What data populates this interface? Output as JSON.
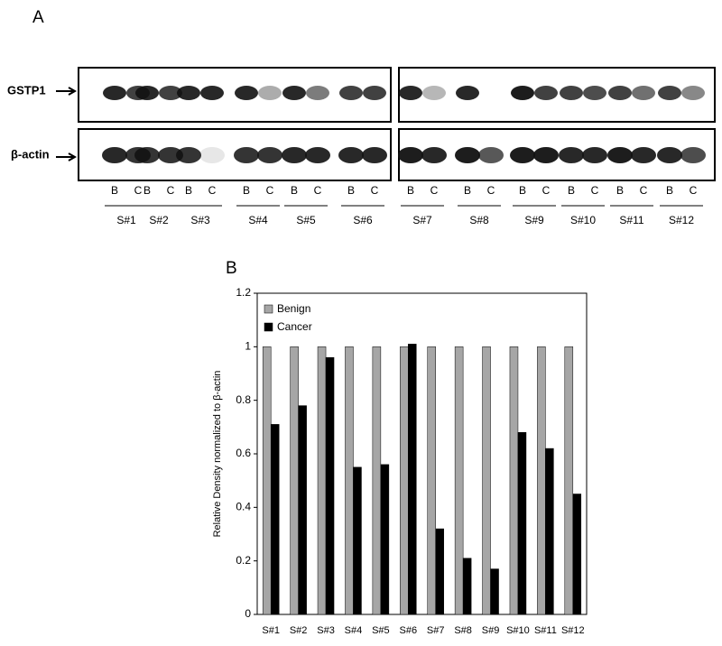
{
  "panel_a": {
    "label": "A",
    "blot_labels": [
      "GSTP1",
      "β-actin"
    ],
    "samples": [
      {
        "name": "S#1",
        "lanes": [
          "B",
          "C"
        ]
      },
      {
        "name": "S#2",
        "lanes": [
          "B",
          "C"
        ]
      },
      {
        "name": "S#3",
        "lanes": [
          "B",
          "C"
        ]
      },
      {
        "name": "S#4",
        "lanes": [
          "B",
          "C"
        ]
      },
      {
        "name": "S#5",
        "lanes": [
          "B",
          "C"
        ]
      },
      {
        "name": "S#6",
        "lanes": [
          "B",
          "C"
        ]
      },
      {
        "name": "S#7",
        "lanes": [
          "B",
          "C"
        ]
      },
      {
        "name": "S#8",
        "lanes": [
          "B",
          "C"
        ]
      },
      {
        "name": "S#9",
        "lanes": [
          "B",
          "C"
        ]
      },
      {
        "name": "S#10",
        "lanes": [
          "B",
          "C"
        ]
      },
      {
        "name": "S#11",
        "lanes": [
          "B",
          "C"
        ]
      },
      {
        "name": "S#12",
        "lanes": [
          "B",
          "C"
        ]
      }
    ]
  },
  "panel_b": {
    "label": "B"
  },
  "chart_data": {
    "type": "bar",
    "y_label": "Relative Density normalized to β-actin",
    "categories": [
      "S#1",
      "S#2",
      "S#3",
      "S#4",
      "S#5",
      "S#6",
      "S#7",
      "S#8",
      "S#9",
      "S#10",
      "S#11",
      "S#12"
    ],
    "series": [
      {
        "name": "Benign",
        "color": "#a6a6a6",
        "values": [
          1,
          1,
          1,
          1,
          1,
          1,
          1,
          1,
          1,
          1,
          1,
          1
        ]
      },
      {
        "name": "Cancer",
        "color": "#000000",
        "values": [
          0.71,
          0.78,
          0.96,
          0.55,
          0.56,
          1.01,
          0.32,
          0.21,
          0.17,
          0.68,
          0.62,
          0.45
        ]
      }
    ],
    "ylim": [
      0,
      1.2
    ],
    "yticks": [
      0,
      0.2,
      0.4,
      0.6,
      0.8,
      1,
      1.2
    ],
    "grid": false,
    "legend": "upper left"
  }
}
